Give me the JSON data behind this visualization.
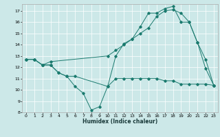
{
  "xlabel": "Humidex (Indice chaleur)",
  "bg_color": "#cce8e8",
  "line_color": "#1a7a6e",
  "xlim": [
    -0.5,
    23.5
  ],
  "ylim": [
    8,
    17.6
  ],
  "yticks": [
    8,
    9,
    10,
    11,
    12,
    13,
    14,
    15,
    16,
    17
  ],
  "xticks": [
    0,
    1,
    2,
    3,
    4,
    5,
    6,
    7,
    8,
    9,
    10,
    11,
    12,
    13,
    14,
    15,
    16,
    17,
    18,
    19,
    20,
    21,
    22,
    23
  ],
  "line1_x": [
    0,
    1,
    2,
    3,
    4,
    5,
    6,
    10,
    11,
    12,
    13,
    14,
    15,
    16,
    17,
    18,
    19,
    20,
    21,
    22,
    23
  ],
  "line1_y": [
    12.7,
    12.7,
    12.2,
    12.2,
    11.5,
    11.2,
    11.2,
    10.3,
    11.0,
    11.0,
    11.0,
    11.0,
    11.0,
    11.0,
    10.8,
    10.8,
    10.5,
    10.5,
    10.5,
    10.5,
    10.4
  ],
  "line2_x": [
    0,
    1,
    2,
    3,
    4,
    5,
    6,
    7,
    8,
    9,
    10,
    11,
    12,
    13,
    14,
    15,
    16,
    17,
    18,
    19,
    20,
    21,
    22,
    23
  ],
  "line2_y": [
    12.7,
    12.7,
    12.2,
    12.2,
    11.5,
    11.2,
    10.3,
    9.7,
    8.2,
    8.5,
    10.3,
    13.0,
    14.1,
    14.5,
    15.6,
    16.8,
    16.8,
    17.2,
    17.4,
    16.0,
    16.0,
    14.2,
    11.9,
    10.4
  ],
  "line3_x": [
    0,
    1,
    2,
    3,
    10,
    11,
    12,
    13,
    14,
    15,
    16,
    17,
    18,
    19,
    20,
    21,
    22,
    23
  ],
  "line3_y": [
    12.7,
    12.7,
    12.2,
    12.5,
    13.0,
    13.5,
    14.0,
    14.5,
    15.0,
    15.5,
    16.5,
    17.0,
    17.1,
    16.8,
    16.0,
    14.2,
    12.7,
    10.4
  ]
}
